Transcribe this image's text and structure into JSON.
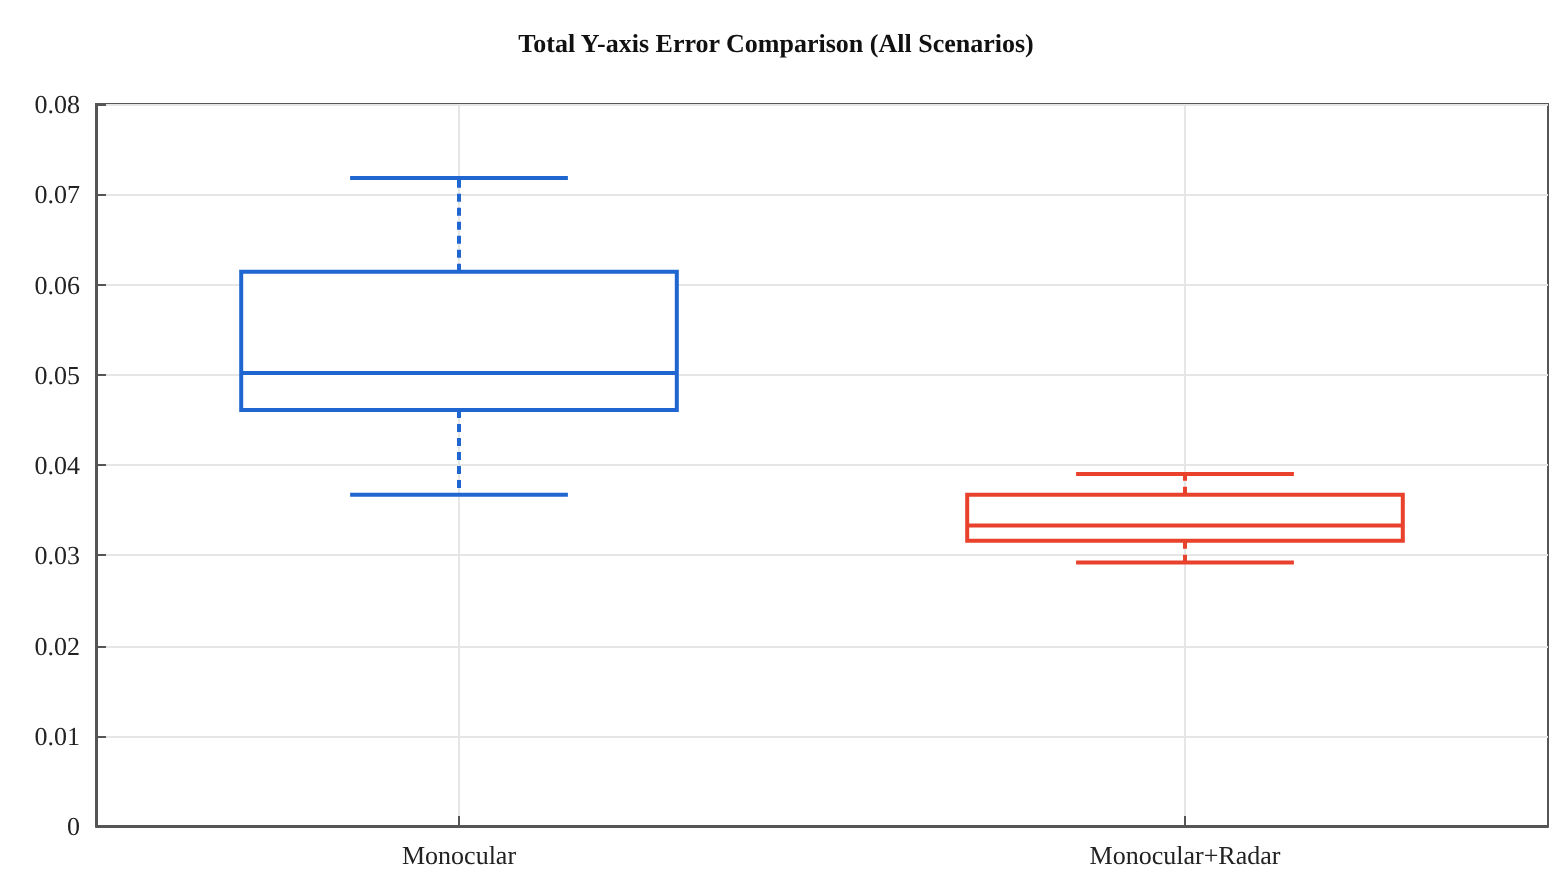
{
  "chart_data": {
    "type": "box",
    "title": "Total Y-axis Error Comparison (All Scenarios)",
    "categories": [
      "Monocular",
      "Monocular+Radar"
    ],
    "boxes": [
      {
        "low": 0.0367,
        "q1": 0.0461,
        "median": 0.0502,
        "q3": 0.0614,
        "high": 0.0718
      },
      {
        "low": 0.0292,
        "q1": 0.0316,
        "median": 0.0333,
        "q3": 0.0367,
        "high": 0.039
      }
    ],
    "colors": [
      "#1f66d0",
      "#e8412c"
    ],
    "line_style": "dashed",
    "ylim": [
      0,
      0.08
    ],
    "yticks": [
      0,
      0.01,
      0.02,
      0.03,
      0.04,
      0.05,
      0.06,
      0.07,
      0.08
    ],
    "grid": true
  }
}
